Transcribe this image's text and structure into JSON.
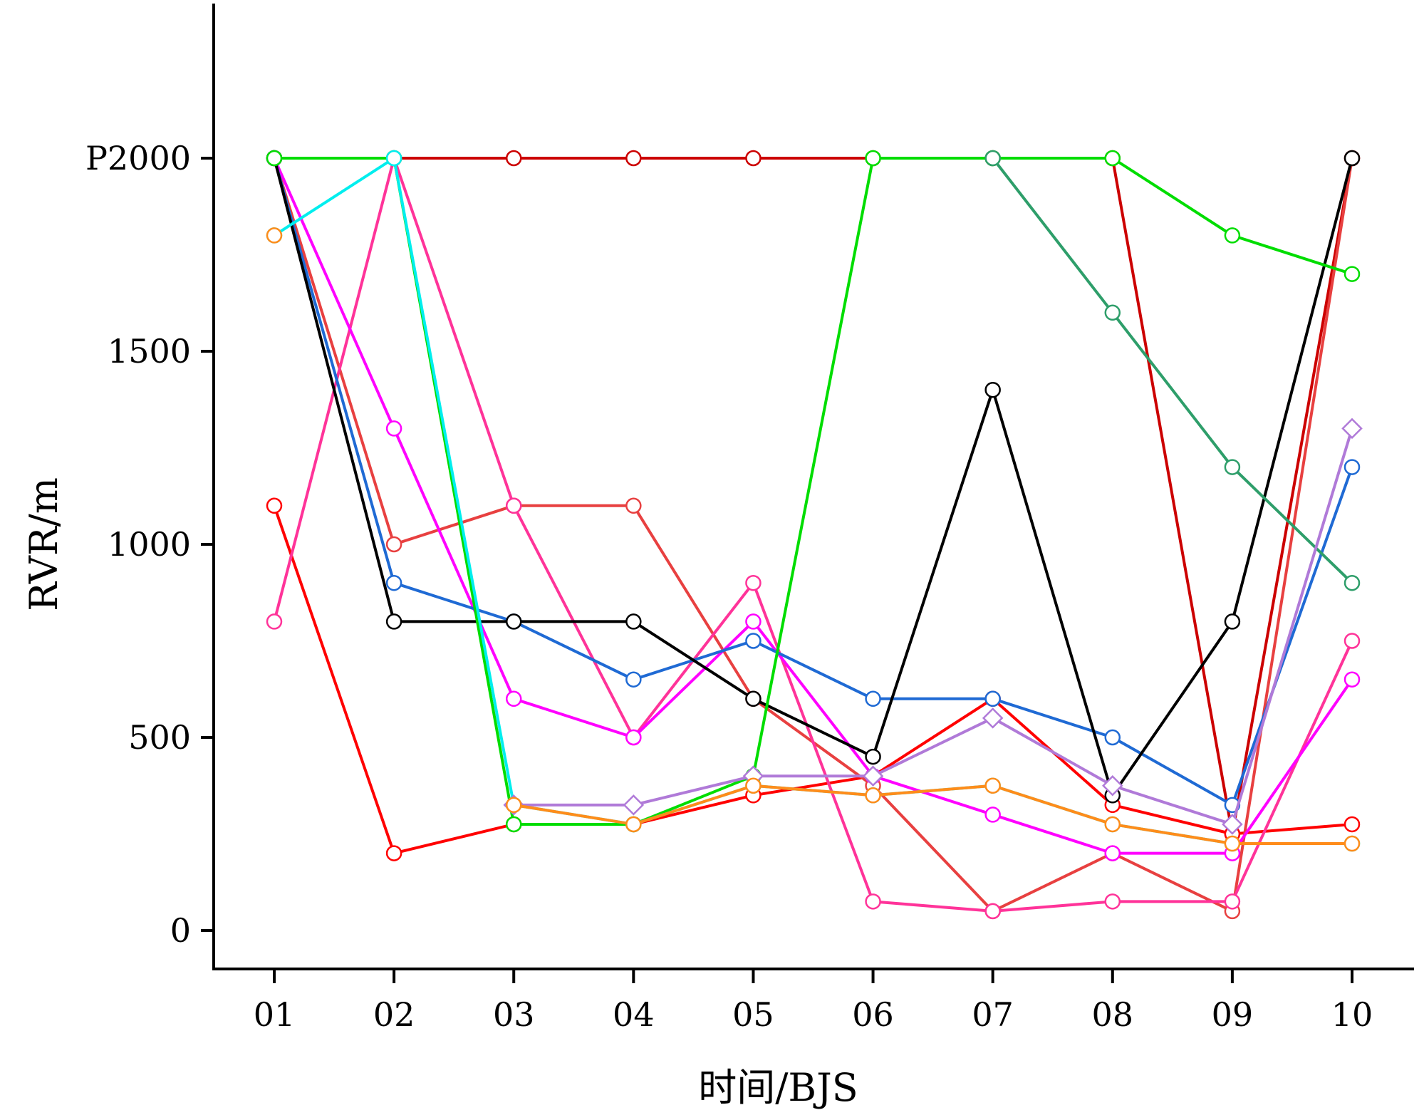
{
  "chart_data": {
    "type": "line",
    "xlabel": "时间/BJS",
    "ylabel": "RVR/m",
    "categories": [
      "01",
      "02",
      "03",
      "04",
      "05",
      "06",
      "07",
      "08",
      "09",
      "10"
    ],
    "ylim": [
      -50,
      2400
    ],
    "y_ticks": [
      {
        "value": 0,
        "label": "0"
      },
      {
        "value": 500,
        "label": "500"
      },
      {
        "value": 1000,
        "label": "1000"
      },
      {
        "value": 1500,
        "label": "1500"
      },
      {
        "value": 2000,
        "label": "P2000"
      }
    ],
    "grid": false,
    "legend": "none",
    "series": [
      {
        "color": "#cc0000",
        "marker": "circle",
        "values": [
          2000,
          2000,
          2000,
          2000,
          2000,
          2000,
          2000,
          2000,
          250,
          2000
        ]
      },
      {
        "color": "#ff0000",
        "marker": "circle",
        "values": [
          1100,
          200,
          275,
          275,
          350,
          400,
          600,
          325,
          250,
          275
        ]
      },
      {
        "color": "#e84040",
        "marker": "circle",
        "values": [
          2000,
          1000,
          1100,
          1100,
          600,
          375,
          50,
          200,
          50,
          2000
        ]
      },
      {
        "color": "#ff3399",
        "marker": "circle",
        "values": [
          800,
          2000,
          1100,
          500,
          900,
          75,
          50,
          75,
          75,
          750
        ]
      },
      {
        "color": "#ff00ff",
        "marker": "circle",
        "values": [
          2000,
          1300,
          600,
          500,
          800,
          400,
          300,
          200,
          200,
          650
        ]
      },
      {
        "color": "#1f6ad4",
        "marker": "circle",
        "values": [
          2000,
          900,
          800,
          650,
          750,
          600,
          600,
          500,
          325,
          1200
        ]
      },
      {
        "color": "#000000",
        "marker": "circle",
        "values": [
          2000,
          800,
          800,
          800,
          600,
          450,
          1400,
          350,
          800,
          2000
        ]
      },
      {
        "color": "#00dd00",
        "marker": "circle",
        "values": [
          2000,
          2000,
          275,
          275,
          400,
          2000,
          2000,
          2000,
          1800,
          1700
        ]
      },
      {
        "color": "#2e9e6a",
        "marker": "circle",
        "values": [
          null,
          null,
          null,
          null,
          null,
          null,
          2000,
          1600,
          1200,
          900
        ]
      },
      {
        "color": "#00eeee",
        "marker": "circle",
        "values": [
          1800,
          2000,
          325,
          275,
          375,
          350,
          375,
          275,
          225,
          225
        ]
      },
      {
        "color": "#b07ad8",
        "marker": "diamond",
        "values": [
          null,
          null,
          325,
          325,
          400,
          400,
          550,
          375,
          275,
          1300
        ]
      },
      {
        "color": "#ff8c1a",
        "marker": "circle",
        "values": [
          1800,
          null,
          325,
          275,
          375,
          350,
          375,
          275,
          225,
          225
        ]
      }
    ]
  }
}
